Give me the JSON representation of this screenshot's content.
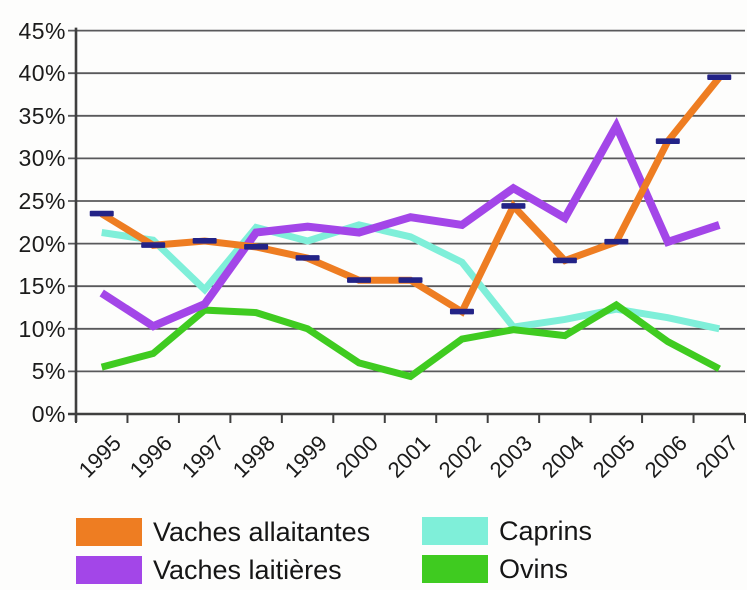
{
  "chart_data": {
    "type": "line",
    "title": "",
    "xlabel": "",
    "ylabel": "",
    "categories": [
      "1995",
      "1996",
      "1997",
      "1998",
      "1999",
      "2000",
      "2001",
      "2002",
      "2003",
      "2004",
      "2005",
      "2006",
      "2007"
    ],
    "y_axis": {
      "min": 0,
      "max": 45,
      "step": 5,
      "unit": "%",
      "tick_labels": [
        "0%",
        "5%",
        "10%",
        "15%",
        "20%",
        "25%",
        "30%",
        "35%",
        "40%",
        "45%"
      ]
    },
    "grid": true,
    "legend_position": "bottom",
    "series": [
      {
        "name": "Vaches allaitantes",
        "color": "#EE7D22",
        "marker": "navy-dash",
        "marker_color": "#232387",
        "values": [
          23.5,
          19.8,
          20.3,
          19.6,
          18.3,
          15.7,
          15.7,
          12.0,
          24.4,
          18.0,
          20.2,
          32.0,
          39.5
        ]
      },
      {
        "name": "Vaches laitières",
        "color": "#A346E8",
        "marker": "none",
        "values": [
          14.2,
          10.3,
          12.9,
          21.3,
          22.0,
          21.3,
          23.1,
          22.2,
          26.5,
          23.0,
          33.8,
          20.2,
          22.2
        ]
      },
      {
        "name": "Caprins",
        "color": "#7FEFD9",
        "marker": "none",
        "values": [
          21.3,
          20.4,
          14.6,
          21.9,
          20.3,
          22.2,
          20.8,
          17.8,
          10.2,
          11.1,
          12.3,
          11.3,
          10.0
        ]
      },
      {
        "name": "Ovins",
        "color": "#3FCB20",
        "marker": "none",
        "values": [
          5.5,
          7.1,
          12.2,
          11.9,
          10.0,
          6.0,
          4.4,
          8.8,
          9.9,
          9.2,
          12.8,
          8.5,
          5.3
        ]
      }
    ]
  },
  "colors": {
    "grid": "#59595b",
    "axis": "#3f3f3f",
    "text": "#1b1b1b",
    "background": "#fdfdfc"
  }
}
